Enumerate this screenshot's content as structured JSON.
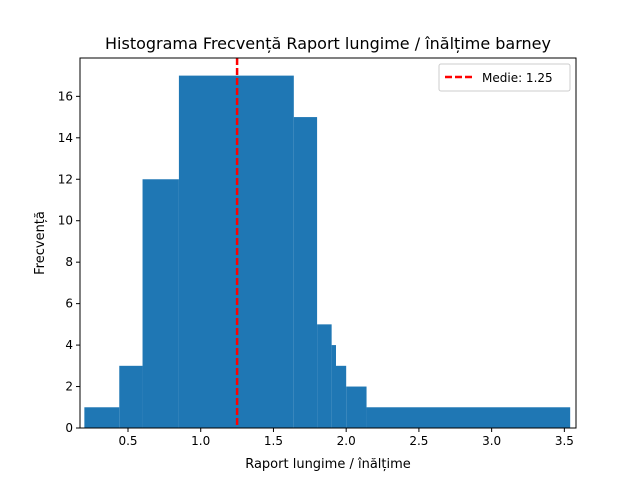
{
  "chart_data": {
    "type": "bar",
    "title": "Histograma Frecvență Raport lungime / înălțime barney",
    "xlabel": "Raport lungime / înălțime",
    "ylabel": "Frecvență",
    "xlim": [
      0.17,
      3.58
    ],
    "ylim": [
      0,
      17.85
    ],
    "xticks": [
      0.5,
      1.0,
      1.5,
      2.0,
      2.5,
      3.0,
      3.5
    ],
    "xtick_labels": [
      "0.5",
      "1.0",
      "1.5",
      "2.0",
      "2.5",
      "3.0",
      "3.5"
    ],
    "yticks": [
      0,
      2,
      4,
      6,
      8,
      10,
      12,
      14,
      16
    ],
    "ytick_labels": [
      "0",
      "2",
      "4",
      "6",
      "8",
      "10",
      "12",
      "14",
      "16"
    ],
    "bar_color": "#1f77b4",
    "bins": [
      {
        "x0": 0.2,
        "x1": 0.44,
        "count": 1
      },
      {
        "x0": 0.44,
        "x1": 0.6,
        "count": 3
      },
      {
        "x0": 0.6,
        "x1": 0.85,
        "count": 12
      },
      {
        "x0": 0.85,
        "x1": 1.64,
        "count": 17
      },
      {
        "x0": 1.64,
        "x1": 1.8,
        "count": 15
      },
      {
        "x0": 1.8,
        "x1": 1.9,
        "count": 5
      },
      {
        "x0": 1.9,
        "x1": 1.93,
        "count": 4
      },
      {
        "x0": 1.93,
        "x1": 2.0,
        "count": 3
      },
      {
        "x0": 2.0,
        "x1": 2.14,
        "count": 2
      },
      {
        "x0": 2.14,
        "x1": 3.54,
        "count": 1
      }
    ],
    "mean_line": {
      "value": 1.25,
      "color": "#ff0000",
      "style": "dashed"
    },
    "legend": {
      "position": "top-right",
      "entries": [
        "Medie: 1.25"
      ]
    },
    "grid": false
  }
}
